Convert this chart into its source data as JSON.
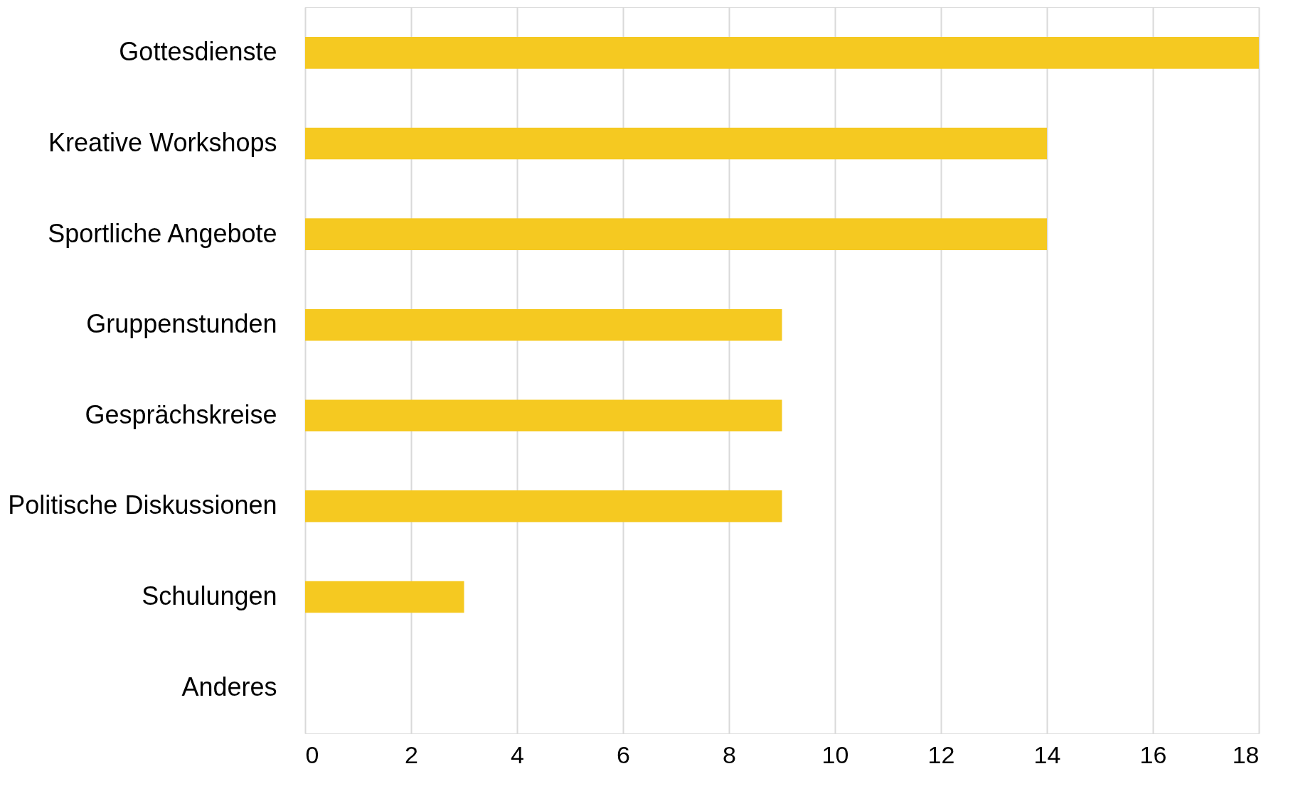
{
  "chart_data": {
    "type": "bar",
    "orientation": "horizontal",
    "categories": [
      "Gottesdienste",
      "Kreative Workshops",
      "Sportliche Angebote",
      "Gruppenstunden",
      "Gesprächskreise",
      "Politische Diskussionen",
      "Schulungen",
      "Anderes"
    ],
    "values": [
      18,
      14,
      14,
      9,
      9,
      9,
      3,
      0
    ],
    "color": "#f5c921",
    "xlim": [
      0,
      18
    ],
    "xticks": [
      0,
      2,
      4,
      6,
      8,
      10,
      12,
      14,
      16,
      18
    ],
    "grid": "x"
  }
}
